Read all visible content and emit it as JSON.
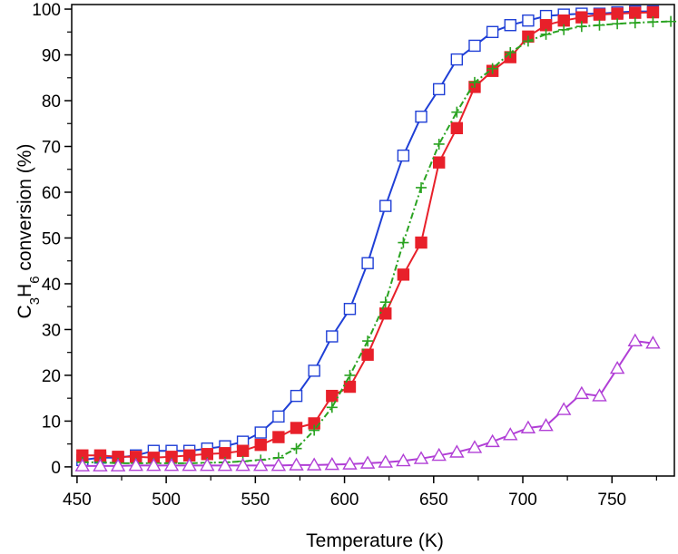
{
  "chart_data": {
    "type": "line",
    "xlabel": "Temperature (K)",
    "ylabel": {
      "parts": [
        "C",
        "3",
        "H",
        "6",
        " conversion (%)"
      ]
    },
    "xlim": [
      447,
      785
    ],
    "ylim": [
      -2,
      101
    ],
    "xticks": [
      450,
      500,
      550,
      600,
      650,
      700,
      750
    ],
    "yticks": [
      0,
      10,
      20,
      30,
      40,
      50,
      60,
      70,
      80,
      90,
      100
    ],
    "grid": false,
    "legend": "none",
    "series": [
      {
        "key": "open-square-blue",
        "color": "#1f3fd6",
        "marker": "open-square",
        "line": "solid",
        "points": [
          [
            453,
            1.5
          ],
          [
            463,
            2
          ],
          [
            473,
            2
          ],
          [
            483,
            2.5
          ],
          [
            493,
            3.5
          ],
          [
            503,
            3.5
          ],
          [
            513,
            3.5
          ],
          [
            523,
            4
          ],
          [
            533,
            4.5
          ],
          [
            543,
            5.5
          ],
          [
            553,
            7.5
          ],
          [
            563,
            11
          ],
          [
            573,
            15.5
          ],
          [
            583,
            21
          ],
          [
            593,
            28.5
          ],
          [
            603,
            34.5
          ],
          [
            613,
            44.5
          ],
          [
            623,
            57
          ],
          [
            633,
            68
          ],
          [
            643,
            76.5
          ],
          [
            653,
            82.5
          ],
          [
            663,
            89
          ],
          [
            673,
            92
          ],
          [
            683,
            95
          ],
          [
            693,
            96.5
          ],
          [
            703,
            97.5
          ],
          [
            713,
            98.5
          ],
          [
            723,
            98.8
          ],
          [
            733,
            99
          ],
          [
            743,
            99
          ],
          [
            753,
            99.3
          ],
          [
            763,
            99.5
          ],
          [
            773,
            99.5
          ]
        ]
      },
      {
        "key": "filled-square-red",
        "color": "#e8202a",
        "marker": "filled-square",
        "line": "solid",
        "points": [
          [
            453,
            2.5
          ],
          [
            463,
            2.5
          ],
          [
            473,
            2.2
          ],
          [
            483,
            2.2
          ],
          [
            493,
            2
          ],
          [
            503,
            2.2
          ],
          [
            513,
            2.5
          ],
          [
            523,
            2.8
          ],
          [
            533,
            3
          ],
          [
            543,
            3.5
          ],
          [
            553,
            4.8
          ],
          [
            563,
            6.5
          ],
          [
            573,
            8.5
          ],
          [
            583,
            9.5
          ],
          [
            593,
            15.5
          ],
          [
            603,
            17.5
          ],
          [
            613,
            24.5
          ],
          [
            623,
            33.5
          ],
          [
            633,
            42
          ],
          [
            643,
            49
          ],
          [
            653,
            66.5
          ],
          [
            663,
            74
          ],
          [
            673,
            83
          ],
          [
            683,
            86.5
          ],
          [
            693,
            89.5
          ],
          [
            703,
            94
          ],
          [
            713,
            96.5
          ],
          [
            723,
            97.5
          ],
          [
            733,
            98.2
          ],
          [
            743,
            98.8
          ],
          [
            753,
            99
          ],
          [
            763,
            99.2
          ],
          [
            773,
            99.3
          ]
        ]
      },
      {
        "key": "plus-green",
        "color": "#2aa321",
        "marker": "plus",
        "line": "dashdot",
        "points": [
          [
            453,
            1
          ],
          [
            463,
            1
          ],
          [
            473,
            0.8
          ],
          [
            483,
            0.8
          ],
          [
            493,
            0.8
          ],
          [
            503,
            0.8
          ],
          [
            513,
            0.8
          ],
          [
            523,
            0.9
          ],
          [
            533,
            1
          ],
          [
            543,
            1.2
          ],
          [
            553,
            1.5
          ],
          [
            563,
            2
          ],
          [
            573,
            4
          ],
          [
            583,
            8
          ],
          [
            593,
            13
          ],
          [
            603,
            20
          ],
          [
            613,
            27.5
          ],
          [
            623,
            36
          ],
          [
            633,
            49
          ],
          [
            643,
            61
          ],
          [
            653,
            70.5
          ],
          [
            663,
            77.5
          ],
          [
            673,
            84
          ],
          [
            683,
            87
          ],
          [
            693,
            90.5
          ],
          [
            703,
            93
          ],
          [
            713,
            94.5
          ],
          [
            723,
            95.5
          ],
          [
            733,
            96.2
          ],
          [
            743,
            96.5
          ],
          [
            753,
            96.8
          ],
          [
            763,
            97
          ],
          [
            773,
            97.2
          ],
          [
            783,
            97.3
          ]
        ]
      },
      {
        "key": "open-triangle-purple",
        "color": "#b13fd6",
        "marker": "open-triangle",
        "line": "solid",
        "points": [
          [
            453,
            0.2
          ],
          [
            463,
            0.2
          ],
          [
            473,
            0.2
          ],
          [
            483,
            0.3
          ],
          [
            493,
            0.3
          ],
          [
            503,
            0.3
          ],
          [
            513,
            0.3
          ],
          [
            523,
            0.3
          ],
          [
            533,
            0.3
          ],
          [
            543,
            0.3
          ],
          [
            553,
            0.3
          ],
          [
            563,
            0.3
          ],
          [
            573,
            0.4
          ],
          [
            583,
            0.4
          ],
          [
            593,
            0.5
          ],
          [
            603,
            0.6
          ],
          [
            613,
            0.8
          ],
          [
            623,
            1
          ],
          [
            633,
            1.3
          ],
          [
            643,
            1.8
          ],
          [
            653,
            2.5
          ],
          [
            663,
            3.2
          ],
          [
            673,
            4.2
          ],
          [
            683,
            5.5
          ],
          [
            693,
            7
          ],
          [
            703,
            8.5
          ],
          [
            713,
            9
          ],
          [
            723,
            12.5
          ],
          [
            733,
            16
          ],
          [
            743,
            15.5
          ],
          [
            753,
            21.5
          ],
          [
            763,
            27.5
          ],
          [
            773,
            27
          ]
        ]
      }
    ]
  }
}
